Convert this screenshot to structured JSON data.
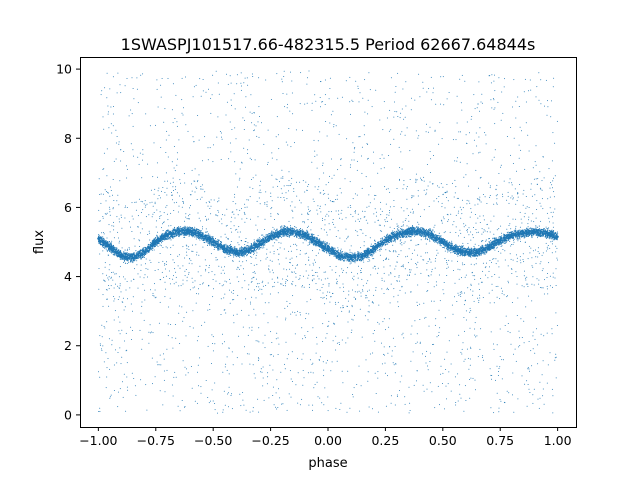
{
  "chart_data": {
    "type": "scatter",
    "title": "1SWASPJ101517.66-482315.5 Period 62667.64844s",
    "xlabel": "phase",
    "ylabel": "flux",
    "xlim": [
      -1.08,
      1.08
    ],
    "ylim": [
      -0.35,
      10.35
    ],
    "xticks": [
      -1.0,
      -0.75,
      -0.5,
      -0.25,
      0.0,
      0.25,
      0.5,
      0.75,
      1.0
    ],
    "xtick_labels": [
      "−1.00",
      "−0.75",
      "−0.50",
      "−0.25",
      "0.00",
      "0.25",
      "0.50",
      "0.75",
      "1.00"
    ],
    "yticks": [
      0,
      2,
      4,
      6,
      8,
      10
    ],
    "ytick_labels": [
      "0",
      "2",
      "4",
      "6",
      "8",
      "10"
    ],
    "grid": false,
    "marker_color": "#1f77b4",
    "series": [
      {
        "x": [
          -1.0,
          -0.95,
          -0.9,
          -0.85,
          -0.8,
          -0.75,
          -0.7,
          -0.65,
          -0.6,
          -0.55,
          -0.5,
          -0.45,
          -0.4,
          -0.35,
          -0.3,
          -0.25,
          -0.2,
          -0.15,
          -0.1,
          -0.05,
          0.0,
          0.05,
          0.1,
          0.15,
          0.2,
          0.25,
          0.3,
          0.35,
          0.4,
          0.45,
          0.5,
          0.55,
          0.6,
          0.65,
          0.7,
          0.75,
          0.8,
          0.85,
          0.9,
          0.95,
          1.0
        ],
        "y": [
          5.1,
          4.85,
          4.6,
          4.55,
          4.7,
          5.0,
          5.2,
          5.3,
          5.3,
          5.2,
          5.0,
          4.8,
          4.7,
          4.75,
          4.95,
          5.15,
          5.3,
          5.3,
          5.2,
          5.0,
          4.8,
          4.6,
          4.55,
          4.6,
          4.8,
          5.05,
          5.2,
          5.3,
          5.3,
          5.2,
          5.0,
          4.8,
          4.7,
          4.7,
          4.85,
          5.05,
          5.2,
          5.25,
          5.3,
          5.25,
          5.15
        ]
      }
    ]
  }
}
